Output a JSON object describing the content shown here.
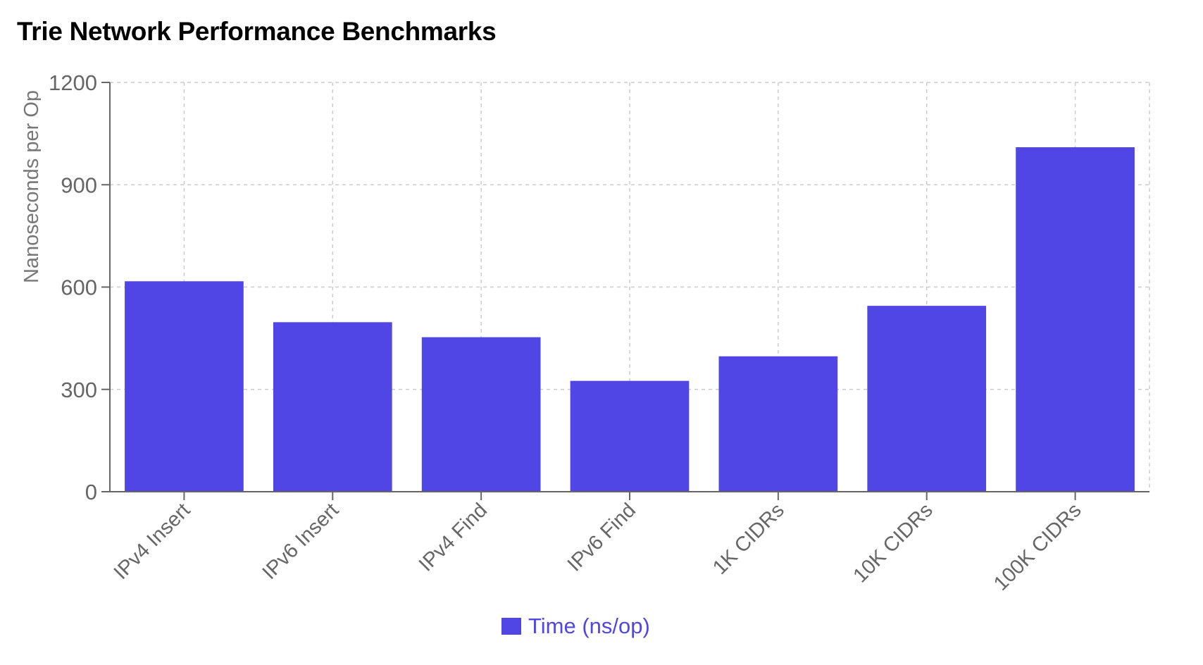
{
  "chart_data": {
    "type": "bar",
    "title": "Trie Network Performance Benchmarks",
    "ylabel": "Nanoseconds per Op",
    "xlabel": "",
    "categories": [
      "IPv4 Insert",
      "IPv6 Insert",
      "IPv4 Find",
      "IPv6 Find",
      "1K CIDRs",
      "10K CIDRs",
      "100K CIDRs"
    ],
    "series": [
      {
        "name": "Time (ns/op)",
        "values": [
          617,
          497,
          453,
          325,
          397,
          545,
          1010
        ],
        "color": "#4f46e5"
      }
    ],
    "ylim": [
      0,
      1200
    ],
    "yticks": [
      0,
      300,
      600,
      900,
      1200
    ],
    "grid": true,
    "legend": "bottom-center"
  }
}
